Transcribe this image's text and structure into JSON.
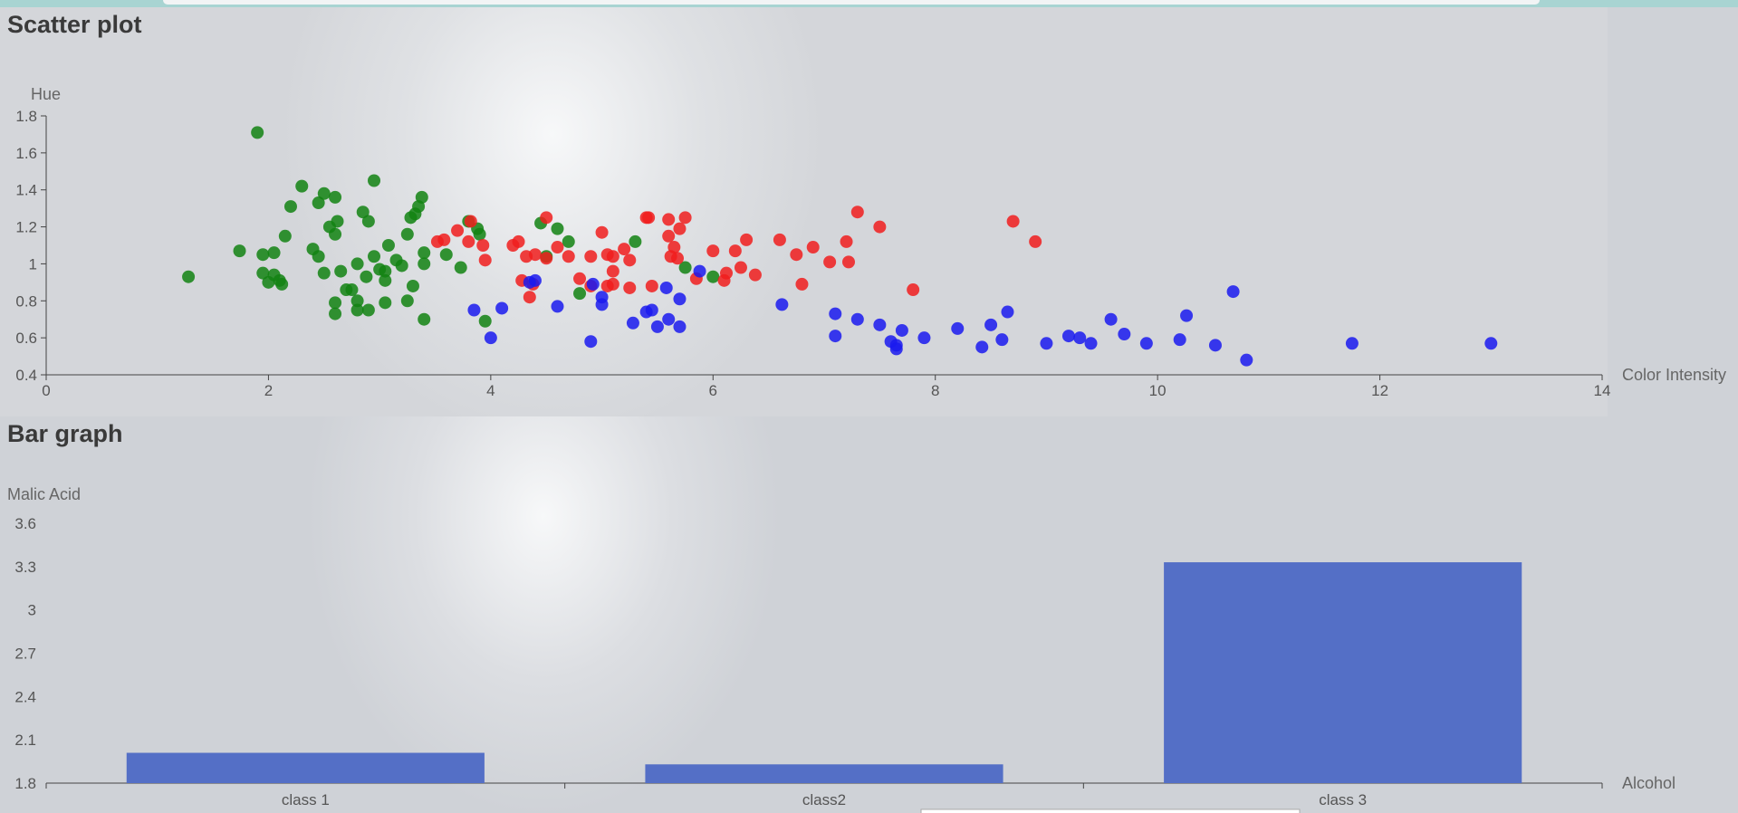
{
  "chart_data": [
    {
      "type": "scatter",
      "title": "Scatter plot",
      "xlabel": "Color Intensity",
      "ylabel": "Hue",
      "xlim": [
        0,
        14
      ],
      "ylim": [
        0.4,
        1.8
      ],
      "x_ticks": [
        "0",
        "2",
        "4",
        "6",
        "8",
        "10",
        "12",
        "14"
      ],
      "y_ticks": [
        "0.4",
        "0.6",
        "0.8",
        "1",
        "1.2",
        "1.4",
        "1.6",
        "1.8"
      ],
      "grid": false,
      "series": [
        {
          "color": "#128312",
          "points": [
            [
              1.28,
              0.93
            ],
            [
              1.74,
              1.07
            ],
            [
              1.9,
              1.71
            ],
            [
              1.95,
              1.05
            ],
            [
              1.95,
              0.95
            ],
            [
              2.0,
              0.9
            ],
            [
              2.05,
              1.06
            ],
            [
              2.05,
              0.94
            ],
            [
              2.1,
              0.91
            ],
            [
              2.12,
              0.89
            ],
            [
              2.15,
              1.15
            ],
            [
              2.2,
              1.31
            ],
            [
              2.3,
              1.42
            ],
            [
              2.4,
              1.08
            ],
            [
              2.45,
              1.33
            ],
            [
              2.45,
              1.04
            ],
            [
              2.5,
              1.38
            ],
            [
              2.5,
              0.95
            ],
            [
              2.55,
              1.2
            ],
            [
              2.6,
              1.36
            ],
            [
              2.6,
              1.16
            ],
            [
              2.6,
              0.79
            ],
            [
              2.6,
              0.73
            ],
            [
              2.62,
              1.23
            ],
            [
              2.65,
              0.96
            ],
            [
              2.7,
              0.86
            ],
            [
              2.75,
              0.86
            ],
            [
              2.8,
              1.0
            ],
            [
              2.8,
              0.8
            ],
            [
              2.8,
              0.75
            ],
            [
              2.85,
              1.28
            ],
            [
              2.88,
              0.93
            ],
            [
              2.9,
              1.23
            ],
            [
              2.9,
              0.75
            ],
            [
              2.95,
              1.45
            ],
            [
              2.95,
              1.04
            ],
            [
              3.0,
              0.97
            ],
            [
              3.05,
              0.96
            ],
            [
              3.05,
              0.91
            ],
            [
              3.05,
              0.79
            ],
            [
              3.08,
              1.1
            ],
            [
              3.15,
              1.02
            ],
            [
              3.2,
              0.99
            ],
            [
              3.25,
              1.16
            ],
            [
              3.25,
              0.8
            ],
            [
              3.28,
              1.25
            ],
            [
              3.3,
              0.88
            ],
            [
              3.32,
              1.27
            ],
            [
              3.35,
              1.31
            ],
            [
              3.38,
              1.36
            ],
            [
              3.4,
              1.06
            ],
            [
              3.4,
              1.0
            ],
            [
              3.4,
              0.7
            ],
            [
              3.6,
              1.05
            ],
            [
              3.73,
              0.98
            ],
            [
              3.8,
              1.23
            ],
            [
              3.88,
              1.19
            ],
            [
              3.9,
              1.16
            ],
            [
              3.95,
              0.69
            ],
            [
              4.5,
              1.04
            ],
            [
              4.45,
              1.22
            ],
            [
              4.6,
              1.19
            ],
            [
              4.7,
              1.12
            ],
            [
              4.8,
              0.84
            ],
            [
              5.3,
              1.12
            ],
            [
              5.75,
              0.98
            ],
            [
              6.0,
              0.93
            ]
          ]
        },
        {
          "color": "#f01d1d",
          "points": [
            [
              3.52,
              1.12
            ],
            [
              3.58,
              1.13
            ],
            [
              3.7,
              1.18
            ],
            [
              3.8,
              1.12
            ],
            [
              3.82,
              1.23
            ],
            [
              3.93,
              1.1
            ],
            [
              3.95,
              1.02
            ],
            [
              4.2,
              1.1
            ],
            [
              4.25,
              1.12
            ],
            [
              4.28,
              0.91
            ],
            [
              4.32,
              1.04
            ],
            [
              4.35,
              0.82
            ],
            [
              4.38,
              0.89
            ],
            [
              4.4,
              1.05
            ],
            [
              4.5,
              1.25
            ],
            [
              4.5,
              1.03
            ],
            [
              4.6,
              1.09
            ],
            [
              4.7,
              1.04
            ],
            [
              4.8,
              0.92
            ],
            [
              4.9,
              1.04
            ],
            [
              4.9,
              0.88
            ],
            [
              5.0,
              1.17
            ],
            [
              5.05,
              1.05
            ],
            [
              5.05,
              0.88
            ],
            [
              5.1,
              1.04
            ],
            [
              5.1,
              0.96
            ],
            [
              5.1,
              0.89
            ],
            [
              5.2,
              1.08
            ],
            [
              5.25,
              1.02
            ],
            [
              5.25,
              0.87
            ],
            [
              5.4,
              1.25
            ],
            [
              5.42,
              1.25
            ],
            [
              5.45,
              0.88
            ],
            [
              5.6,
              1.24
            ],
            [
              5.6,
              1.15
            ],
            [
              5.62,
              1.04
            ],
            [
              5.65,
              1.09
            ],
            [
              5.68,
              1.03
            ],
            [
              5.7,
              1.19
            ],
            [
              5.75,
              1.25
            ],
            [
              5.85,
              0.92
            ],
            [
              6.0,
              1.07
            ],
            [
              6.1,
              0.91
            ],
            [
              6.12,
              0.95
            ],
            [
              6.2,
              1.07
            ],
            [
              6.25,
              0.98
            ],
            [
              6.3,
              1.13
            ],
            [
              6.38,
              0.94
            ],
            [
              6.6,
              1.13
            ],
            [
              6.75,
              1.05
            ],
            [
              6.8,
              0.89
            ],
            [
              6.9,
              1.09
            ],
            [
              7.05,
              1.01
            ],
            [
              7.2,
              1.12
            ],
            [
              7.22,
              1.01
            ],
            [
              7.3,
              1.28
            ],
            [
              7.5,
              1.2
            ],
            [
              7.8,
              0.86
            ],
            [
              8.7,
              1.23
            ],
            [
              8.9,
              1.12
            ]
          ]
        },
        {
          "color": "#1a1aee",
          "points": [
            [
              3.85,
              0.75
            ],
            [
              4.0,
              0.6
            ],
            [
              4.1,
              0.76
            ],
            [
              4.35,
              0.9
            ],
            [
              4.4,
              0.91
            ],
            [
              4.6,
              0.77
            ],
            [
              4.9,
              0.58
            ],
            [
              4.92,
              0.89
            ],
            [
              5.0,
              0.82
            ],
            [
              5.0,
              0.78
            ],
            [
              5.28,
              0.68
            ],
            [
              5.4,
              0.74
            ],
            [
              5.45,
              0.75
            ],
            [
              5.5,
              0.66
            ],
            [
              5.58,
              0.87
            ],
            [
              5.6,
              0.7
            ],
            [
              5.7,
              0.81
            ],
            [
              5.7,
              0.66
            ],
            [
              5.88,
              0.96
            ],
            [
              6.62,
              0.78
            ],
            [
              7.1,
              0.73
            ],
            [
              7.1,
              0.61
            ],
            [
              7.3,
              0.7
            ],
            [
              7.5,
              0.67
            ],
            [
              7.6,
              0.58
            ],
            [
              7.65,
              0.56
            ],
            [
              7.65,
              0.54
            ],
            [
              7.7,
              0.64
            ],
            [
              7.9,
              0.6
            ],
            [
              8.2,
              0.65
            ],
            [
              8.42,
              0.55
            ],
            [
              8.5,
              0.67
            ],
            [
              8.6,
              0.59
            ],
            [
              8.65,
              0.74
            ],
            [
              9.0,
              0.57
            ],
            [
              9.2,
              0.61
            ],
            [
              9.3,
              0.6
            ],
            [
              9.4,
              0.57
            ],
            [
              9.58,
              0.7
            ],
            [
              9.7,
              0.62
            ],
            [
              9.9,
              0.57
            ],
            [
              10.2,
              0.59
            ],
            [
              10.26,
              0.72
            ],
            [
              10.52,
              0.56
            ],
            [
              10.68,
              0.85
            ],
            [
              10.8,
              0.48
            ],
            [
              11.75,
              0.57
            ],
            [
              13.0,
              0.57
            ]
          ]
        }
      ]
    },
    {
      "type": "bar",
      "title": "Bar graph",
      "xlabel": "Alcohol",
      "ylabel": "Malic Acid",
      "ylim": [
        1.8,
        3.6
      ],
      "y_ticks": [
        "1.8",
        "2.1",
        "2.4",
        "2.7",
        "3",
        "3.3",
        "3.6"
      ],
      "categories": [
        "class 1",
        "class2",
        "class 3"
      ],
      "values": [
        2.01,
        1.93,
        3.33
      ],
      "color": "#546fc6",
      "grid": false
    }
  ]
}
